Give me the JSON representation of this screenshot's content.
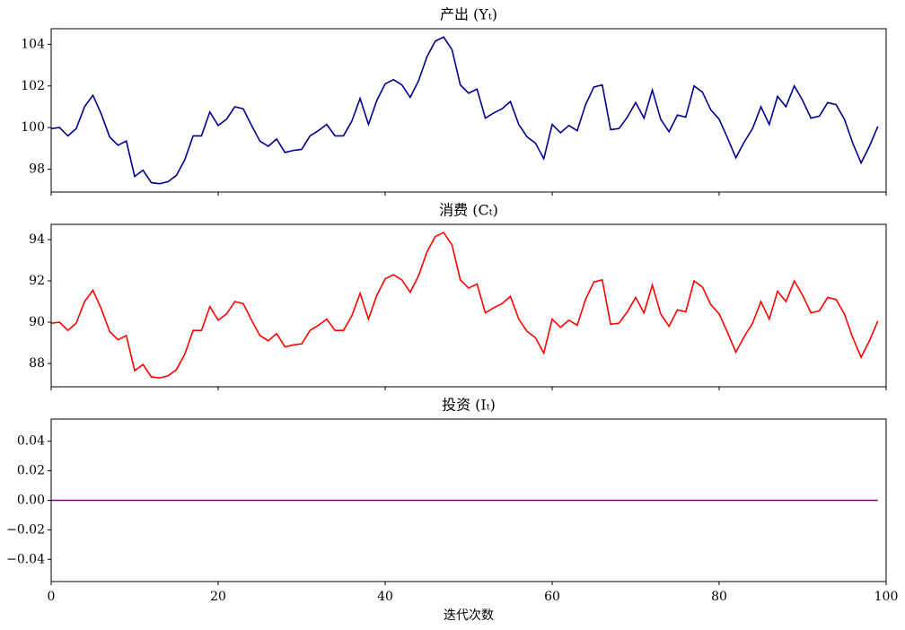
{
  "chart_data": [
    {
      "type": "line",
      "title": "产出 (Yₜ)",
      "x": [
        0,
        1,
        2,
        3,
        4,
        5,
        6,
        7,
        8,
        9,
        10,
        11,
        12,
        13,
        14,
        15,
        16,
        17,
        18,
        19,
        20,
        21,
        22,
        23,
        24,
        25,
        26,
        27,
        28,
        29,
        30,
        31,
        32,
        33,
        34,
        35,
        36,
        37,
        38,
        39,
        40,
        41,
        42,
        43,
        44,
        45,
        46,
        47,
        48,
        49,
        50,
        51,
        52,
        53,
        54,
        55,
        56,
        57,
        58,
        59,
        60,
        61,
        62,
        63,
        64,
        65,
        66,
        67,
        68,
        69,
        70,
        71,
        72,
        73,
        74,
        75,
        76,
        77,
        78,
        79,
        80,
        81,
        82,
        83,
        84,
        85,
        86,
        87,
        88,
        89,
        90,
        91,
        92,
        93,
        94,
        95,
        96,
        97,
        98,
        99
      ],
      "values": [
        99.95,
        100.0,
        99.6,
        99.95,
        101.0,
        101.55,
        100.65,
        99.55,
        99.15,
        99.35,
        97.65,
        97.95,
        97.35,
        97.3,
        97.4,
        97.7,
        98.45,
        99.6,
        99.6,
        100.75,
        100.1,
        100.4,
        101.0,
        100.9,
        100.1,
        99.35,
        99.1,
        99.45,
        98.8,
        98.9,
        98.95,
        99.6,
        99.85,
        100.15,
        99.6,
        99.6,
        100.3,
        101.4,
        100.15,
        101.3,
        102.1,
        102.3,
        102.05,
        101.45,
        102.25,
        103.4,
        104.15,
        104.35,
        103.75,
        102.05,
        101.65,
        101.85,
        100.45,
        100.7,
        100.9,
        101.25,
        100.15,
        99.55,
        99.25,
        98.5,
        100.15,
        99.75,
        100.1,
        99.85,
        101.1,
        101.95,
        102.05,
        99.9,
        99.95,
        100.5,
        101.2,
        100.45,
        101.8,
        100.4,
        99.8,
        100.6,
        100.5,
        102.0,
        101.7,
        100.85,
        100.4,
        99.5,
        98.55,
        99.3,
        99.95,
        101.0,
        100.15,
        101.5,
        101.0,
        102.0,
        101.3,
        100.45,
        100.55,
        101.2,
        101.1,
        100.4,
        99.25,
        98.3,
        99.1,
        100.05
      ],
      "color": "#00008b",
      "xlim": [
        0,
        100
      ],
      "xticks": [
        0,
        20,
        40,
        60,
        80,
        100
      ],
      "ylim": [
        96.9,
        104.75
      ],
      "yticks": [
        98,
        100,
        102,
        104
      ]
    },
    {
      "type": "line",
      "title": "消费 (Cₜ)",
      "x": [
        0,
        1,
        2,
        3,
        4,
        5,
        6,
        7,
        8,
        9,
        10,
        11,
        12,
        13,
        14,
        15,
        16,
        17,
        18,
        19,
        20,
        21,
        22,
        23,
        24,
        25,
        26,
        27,
        28,
        29,
        30,
        31,
        32,
        33,
        34,
        35,
        36,
        37,
        38,
        39,
        40,
        41,
        42,
        43,
        44,
        45,
        46,
        47,
        48,
        49,
        50,
        51,
        52,
        53,
        54,
        55,
        56,
        57,
        58,
        59,
        60,
        61,
        62,
        63,
        64,
        65,
        66,
        67,
        68,
        69,
        70,
        71,
        72,
        73,
        74,
        75,
        76,
        77,
        78,
        79,
        80,
        81,
        82,
        83,
        84,
        85,
        86,
        87,
        88,
        89,
        90,
        91,
        92,
        93,
        94,
        95,
        96,
        97,
        98,
        99
      ],
      "values": [
        89.95,
        90.0,
        89.6,
        89.95,
        91.0,
        91.55,
        90.65,
        89.55,
        89.15,
        89.35,
        87.65,
        87.95,
        87.35,
        87.3,
        87.4,
        87.7,
        88.45,
        89.6,
        89.6,
        90.75,
        90.1,
        90.4,
        91.0,
        90.9,
        90.1,
        89.35,
        89.1,
        89.45,
        88.8,
        88.9,
        88.95,
        89.6,
        89.85,
        90.15,
        89.6,
        89.6,
        90.3,
        91.4,
        90.15,
        91.3,
        92.1,
        92.3,
        92.05,
        91.45,
        92.25,
        93.4,
        94.15,
        94.35,
        93.75,
        92.05,
        91.65,
        91.85,
        90.45,
        90.7,
        90.9,
        91.25,
        90.15,
        89.55,
        89.25,
        88.5,
        90.15,
        89.75,
        90.1,
        89.85,
        91.1,
        91.95,
        92.05,
        89.9,
        89.95,
        90.5,
        91.2,
        90.45,
        91.8,
        90.4,
        89.8,
        90.6,
        90.5,
        92.0,
        91.7,
        90.85,
        90.4,
        89.5,
        88.55,
        89.3,
        89.95,
        91.0,
        90.15,
        91.5,
        91.0,
        92.0,
        91.3,
        90.45,
        90.55,
        91.2,
        91.1,
        90.4,
        89.25,
        88.3,
        89.1,
        90.05
      ],
      "color": "#ff0000",
      "xlim": [
        0,
        100
      ],
      "xticks": [
        0,
        20,
        40,
        60,
        80,
        100
      ],
      "ylim": [
        86.87,
        94.74
      ],
      "yticks": [
        88,
        90,
        92,
        94
      ]
    },
    {
      "type": "line",
      "title": "投资 (Iₜ)",
      "xlabel": "迭代次数",
      "x": [
        0,
        1,
        2,
        3,
        4,
        5,
        6,
        7,
        8,
        9,
        10,
        11,
        12,
        13,
        14,
        15,
        16,
        17,
        18,
        19,
        20,
        21,
        22,
        23,
        24,
        25,
        26,
        27,
        28,
        29,
        30,
        31,
        32,
        33,
        34,
        35,
        36,
        37,
        38,
        39,
        40,
        41,
        42,
        43,
        44,
        45,
        46,
        47,
        48,
        49,
        50,
        51,
        52,
        53,
        54,
        55,
        56,
        57,
        58,
        59,
        60,
        61,
        62,
        63,
        64,
        65,
        66,
        67,
        68,
        69,
        70,
        71,
        72,
        73,
        74,
        75,
        76,
        77,
        78,
        79,
        80,
        81,
        82,
        83,
        84,
        85,
        86,
        87,
        88,
        89,
        90,
        91,
        92,
        93,
        94,
        95,
        96,
        97,
        98,
        99
      ],
      "values": [
        0,
        0,
        0,
        0,
        0,
        0,
        0,
        0,
        0,
        0,
        0,
        0,
        0,
        0,
        0,
        0,
        0,
        0,
        0,
        0,
        0,
        0,
        0,
        0,
        0,
        0,
        0,
        0,
        0,
        0,
        0,
        0,
        0,
        0,
        0,
        0,
        0,
        0,
        0,
        0,
        0,
        0,
        0,
        0,
        0,
        0,
        0,
        0,
        0,
        0,
        0,
        0,
        0,
        0,
        0,
        0,
        0,
        0,
        0,
        0,
        0,
        0,
        0,
        0,
        0,
        0,
        0,
        0,
        0,
        0,
        0,
        0,
        0,
        0,
        0,
        0,
        0,
        0,
        0,
        0,
        0,
        0,
        0,
        0,
        0,
        0,
        0,
        0,
        0,
        0,
        0,
        0,
        0,
        0,
        0,
        0,
        0,
        0,
        0,
        0
      ],
      "color": "#800080",
      "xlim": [
        0,
        100
      ],
      "xticks": [
        0,
        20,
        40,
        60,
        80,
        100
      ],
      "ylim": [
        -0.055,
        0.055
      ],
      "yticks": [
        {
          "value": -0.04,
          "label": "−0.04"
        },
        {
          "value": -0.02,
          "label": "−0.02"
        },
        {
          "value": 0,
          "label": "0.00"
        },
        {
          "value": 0.02,
          "label": "0.02"
        },
        {
          "value": 0.04,
          "label": "0.04"
        }
      ]
    }
  ]
}
